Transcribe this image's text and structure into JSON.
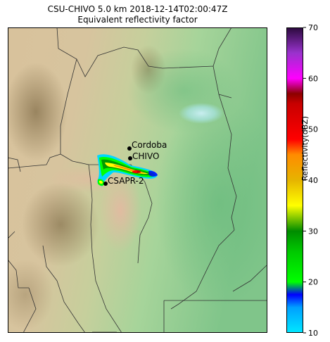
{
  "chart_data": {
    "type": "heatmap",
    "title": "CSU-CHIVO 5.0 km 2018-12-14T02:00:47Z",
    "subtitle": "Equivalent reflectivity factor",
    "sites": [
      {
        "name": "Cordoba"
      },
      {
        "name": "CHIVO"
      },
      {
        "name": "CSAPR-2"
      }
    ],
    "colorbar": {
      "label": "Reflectivity(dBZ)",
      "min": 10,
      "max": 70,
      "ticks": [
        10,
        20,
        30,
        40,
        50,
        60,
        70
      ],
      "colors": [
        {
          "v": 10,
          "c": "#00e8ff"
        },
        {
          "v": 15,
          "c": "#00a0ff"
        },
        {
          "v": 17.5,
          "c": "#0000ff"
        },
        {
          "v": 20,
          "c": "#00ff00"
        },
        {
          "v": 26,
          "c": "#00c800"
        },
        {
          "v": 30,
          "c": "#008c00"
        },
        {
          "v": 35,
          "c": "#ffff00"
        },
        {
          "v": 40,
          "c": "#e6b400"
        },
        {
          "v": 45,
          "c": "#ff8c00"
        },
        {
          "v": 48,
          "c": "#ff0000"
        },
        {
          "v": 55,
          "c": "#c80000"
        },
        {
          "v": 57,
          "c": "#8c0000"
        },
        {
          "v": 60,
          "c": "#ff00ff"
        },
        {
          "v": 65,
          "c": "#9932cc"
        },
        {
          "v": 70,
          "c": "#2a0a3c"
        }
      ]
    }
  }
}
